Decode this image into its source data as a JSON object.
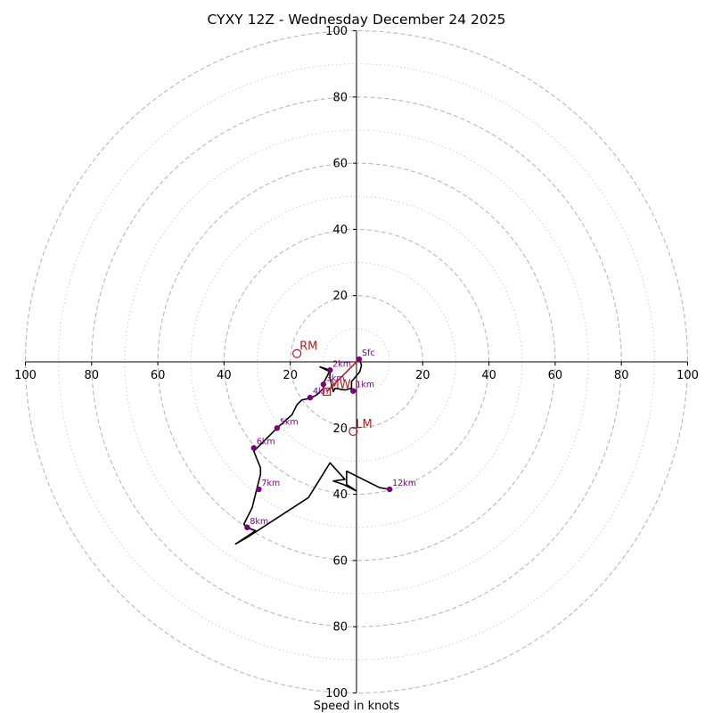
{
  "chart_data": {
    "type": "scatter",
    "title": "CYXY 12Z - Wednesday December 24 2025",
    "xlabel": "Speed in knots",
    "ylabel": "",
    "xlim": [
      -100,
      100
    ],
    "ylim": [
      -100,
      100
    ],
    "ring_major": [
      20,
      40,
      60,
      80,
      100
    ],
    "ring_minor": [
      10,
      30,
      50,
      70,
      90
    ],
    "x_ticks": [
      {
        "value": -100,
        "label": "100"
      },
      {
        "value": -80,
        "label": "80"
      },
      {
        "value": -60,
        "label": "60"
      },
      {
        "value": -40,
        "label": "40"
      },
      {
        "value": -20,
        "label": "20"
      },
      {
        "value": 20,
        "label": "20"
      },
      {
        "value": 40,
        "label": "40"
      },
      {
        "value": 60,
        "label": "60"
      },
      {
        "value": 80,
        "label": "80"
      },
      {
        "value": 100,
        "label": "100"
      }
    ],
    "y_ticks": [
      {
        "value": 100,
        "label": "100"
      },
      {
        "value": 80,
        "label": "80"
      },
      {
        "value": 60,
        "label": "60"
      },
      {
        "value": 40,
        "label": "40"
      },
      {
        "value": 20,
        "label": "20"
      },
      {
        "value": -20,
        "label": "20"
      },
      {
        "value": -40,
        "label": "40"
      },
      {
        "value": -60,
        "label": "60"
      },
      {
        "value": -80,
        "label": "80"
      },
      {
        "value": -100,
        "label": "100"
      }
    ],
    "trace": [
      [
        0.8,
        0.8
      ],
      [
        1.5,
        -1
      ],
      [
        1,
        -3
      ],
      [
        -1.5,
        -6
      ],
      [
        -1.5,
        -8
      ],
      [
        -3.5,
        -8.5
      ],
      [
        -6.5,
        -8
      ],
      [
        -7,
        -9
      ],
      [
        -8,
        -5
      ],
      [
        -8,
        -3
      ],
      [
        -11,
        -1.5
      ],
      [
        -8,
        -2.5
      ],
      [
        -10,
        -6.5
      ],
      [
        -10,
        -8
      ],
      [
        -12,
        -10
      ],
      [
        -14,
        -11
      ],
      [
        -16.5,
        -11.5
      ],
      [
        -18,
        -13
      ],
      [
        -19.5,
        -16
      ],
      [
        -24,
        -20
      ],
      [
        -31,
        -27
      ],
      [
        -29,
        -32
      ],
      [
        -29,
        -34
      ],
      [
        -31,
        -42
      ],
      [
        -31.5,
        -44
      ],
      [
        -34,
        -49
      ],
      [
        -33,
        -50
      ],
      [
        -30.5,
        -51
      ],
      [
        -36.5,
        -55
      ],
      [
        -33,
        -53
      ],
      [
        -14.5,
        -41
      ],
      [
        -8,
        -30.5
      ],
      [
        -3.5,
        -35.5
      ],
      [
        -7,
        -36
      ],
      [
        -4,
        -37
      ],
      [
        0,
        -39
      ],
      [
        -3,
        -37
      ],
      [
        -3,
        -33
      ],
      [
        7,
        -38
      ],
      [
        10,
        -38.5
      ]
    ],
    "height_points": [
      {
        "label": "Sfc",
        "x": 0.8,
        "y": 0.8
      },
      {
        "label": "1km",
        "x": -1,
        "y": -8.8
      },
      {
        "label": "2km",
        "x": -8,
        "y": -2.5
      },
      {
        "label": "3km",
        "x": -10,
        "y": -6.8
      },
      {
        "label": "4km",
        "x": -14,
        "y": -10.8
      },
      {
        "label": "5km",
        "x": -24,
        "y": -20
      },
      {
        "label": "6km",
        "x": -31,
        "y": -26
      },
      {
        "label": "7km",
        "x": -29.5,
        "y": -38.5
      },
      {
        "label": "8km",
        "x": -33,
        "y": -50
      },
      {
        "label": "12km",
        "x": 10,
        "y": -38.5
      }
    ],
    "motion_markers": [
      {
        "label": "RM",
        "x": -18,
        "y": 2.5,
        "shape": "circle"
      },
      {
        "label": "LM",
        "x": -1,
        "y": -21,
        "shape": "circle"
      },
      {
        "label": "MW",
        "x": -9,
        "y": -9,
        "shape": "square"
      }
    ],
    "shear_vector": {
      "from": [
        0.8,
        0.8
      ],
      "to": [
        -9,
        -9
      ]
    },
    "colors": {
      "trace": "#000000",
      "points": "#7a007a",
      "markers": "#b22222",
      "grid": "#b8b8b8",
      "axes": "#000000"
    }
  }
}
